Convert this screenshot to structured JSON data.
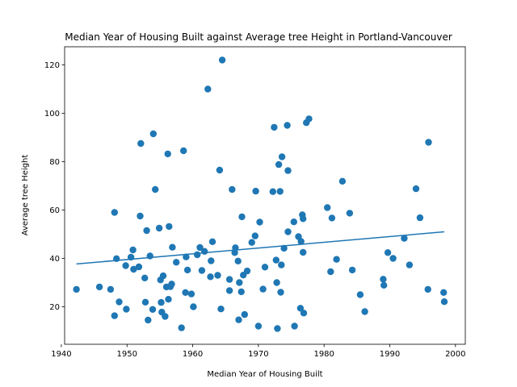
{
  "chart_data": {
    "type": "scatter",
    "title": "Median Year of Housing Built against Average tree Height in Portland-Vancouver",
    "xlabel": "Median Year of Housing Built",
    "ylabel": "Average tree Height",
    "xlim": [
      1940.5,
      2001.5
    ],
    "ylim": [
      4.5,
      127.5
    ],
    "xticks": [
      1940,
      1950,
      1960,
      1970,
      1980,
      1990,
      2000
    ],
    "yticks": [
      20,
      40,
      60,
      80,
      100,
      120
    ],
    "grid": false,
    "colors": {
      "points": "#1f77b4",
      "trend": "#1f77b4"
    },
    "trendline": {
      "x": [
        1942.3,
        1998.3
      ],
      "y": [
        37.7,
        51.0
      ]
    },
    "points": [
      [
        1942.3,
        27.2
      ],
      [
        1945.8,
        28.2
      ],
      [
        1947.5,
        27.2
      ],
      [
        1948.1,
        16.3
      ],
      [
        1948.1,
        59.0
      ],
      [
        1948.4,
        39.9
      ],
      [
        1948.8,
        22.0
      ],
      [
        1949.8,
        37.0
      ],
      [
        1949.9,
        19.0
      ],
      [
        1950.6,
        40.5
      ],
      [
        1950.9,
        43.5
      ],
      [
        1951.0,
        35.5
      ],
      [
        1951.8,
        36.5
      ],
      [
        1952.0,
        57.5
      ],
      [
        1952.1,
        87.5
      ],
      [
        1952.7,
        31.9
      ],
      [
        1952.8,
        21.9
      ],
      [
        1953.0,
        51.5
      ],
      [
        1953.2,
        14.5
      ],
      [
        1953.5,
        41.0
      ],
      [
        1953.9,
        18.9
      ],
      [
        1954.0,
        91.5
      ],
      [
        1954.3,
        68.5
      ],
      [
        1954.9,
        52.5
      ],
      [
        1955.1,
        31.1
      ],
      [
        1955.2,
        21.8
      ],
      [
        1955.3,
        17.8
      ],
      [
        1955.5,
        32.8
      ],
      [
        1955.8,
        16.0
      ],
      [
        1956.0,
        28.2
      ],
      [
        1956.2,
        83.2
      ],
      [
        1956.3,
        23.1
      ],
      [
        1956.4,
        53.2
      ],
      [
        1956.6,
        28.3
      ],
      [
        1956.8,
        29.4
      ],
      [
        1956.9,
        44.6
      ],
      [
        1957.5,
        38.4
      ],
      [
        1958.3,
        11.3
      ],
      [
        1958.6,
        84.5
      ],
      [
        1958.9,
        25.9
      ],
      [
        1959.0,
        40.6
      ],
      [
        1959.2,
        35.2
      ],
      [
        1959.8,
        25.3
      ],
      [
        1960.1,
        20.0
      ],
      [
        1960.7,
        41.5
      ],
      [
        1961.1,
        44.5
      ],
      [
        1961.4,
        35.0
      ],
      [
        1961.8,
        42.9
      ],
      [
        1962.3,
        110.0
      ],
      [
        1962.7,
        32.4
      ],
      [
        1962.8,
        39.0
      ],
      [
        1963.0,
        46.9
      ],
      [
        1963.8,
        33.0
      ],
      [
        1964.1,
        76.5
      ],
      [
        1964.3,
        19.1
      ],
      [
        1964.5,
        122.0
      ],
      [
        1965.6,
        31.3
      ],
      [
        1965.6,
        26.7
      ],
      [
        1966.0,
        68.5
      ],
      [
        1966.4,
        42.4
      ],
      [
        1966.5,
        44.4
      ],
      [
        1966.9,
        38.9
      ],
      [
        1967.0,
        14.6
      ],
      [
        1967.1,
        30.0
      ],
      [
        1967.4,
        26.2
      ],
      [
        1967.5,
        57.2
      ],
      [
        1967.7,
        33.1
      ],
      [
        1967.9,
        16.8
      ],
      [
        1968.3,
        34.8
      ],
      [
        1969.0,
        46.6
      ],
      [
        1969.5,
        49.3
      ],
      [
        1969.6,
        67.8
      ],
      [
        1970.0,
        12.0
      ],
      [
        1970.2,
        55.0
      ],
      [
        1970.7,
        27.3
      ],
      [
        1971.0,
        36.4
      ],
      [
        1972.2,
        67.6
      ],
      [
        1972.4,
        94.2
      ],
      [
        1972.7,
        39.3
      ],
      [
        1972.8,
        30.0
      ],
      [
        1972.9,
        11.0
      ],
      [
        1973.1,
        78.8
      ],
      [
        1973.3,
        67.7
      ],
      [
        1973.4,
        26.0
      ],
      [
        1973.5,
        37.3
      ],
      [
        1973.6,
        82.0
      ],
      [
        1973.9,
        44.2
      ],
      [
        1974.4,
        95.0
      ],
      [
        1974.5,
        51.0
      ],
      [
        1974.5,
        76.3
      ],
      [
        1975.4,
        55.1
      ],
      [
        1975.5,
        12.0
      ],
      [
        1976.1,
        49.0
      ],
      [
        1976.4,
        19.4
      ],
      [
        1976.5,
        47.0
      ],
      [
        1976.7,
        58.0
      ],
      [
        1976.8,
        42.5
      ],
      [
        1976.8,
        56.4
      ],
      [
        1976.9,
        17.4
      ],
      [
        1977.3,
        96.1
      ],
      [
        1977.7,
        97.7
      ],
      [
        1980.5,
        61.0
      ],
      [
        1981.0,
        34.5
      ],
      [
        1981.2,
        56.7
      ],
      [
        1981.9,
        39.6
      ],
      [
        1982.8,
        71.9
      ],
      [
        1983.9,
        58.7
      ],
      [
        1984.3,
        35.2
      ],
      [
        1985.5,
        25.0
      ],
      [
        1986.2,
        18.0
      ],
      [
        1989.0,
        31.4
      ],
      [
        1989.1,
        28.9
      ],
      [
        1989.7,
        42.4
      ],
      [
        1990.5,
        40.0
      ],
      [
        1992.2,
        48.3
      ],
      [
        1993.0,
        37.3
      ],
      [
        1994.0,
        68.8
      ],
      [
        1994.6,
        56.8
      ],
      [
        1995.9,
        88.0
      ],
      [
        1995.8,
        27.2
      ],
      [
        1998.2,
        25.9
      ],
      [
        1998.3,
        22.1
      ]
    ]
  }
}
